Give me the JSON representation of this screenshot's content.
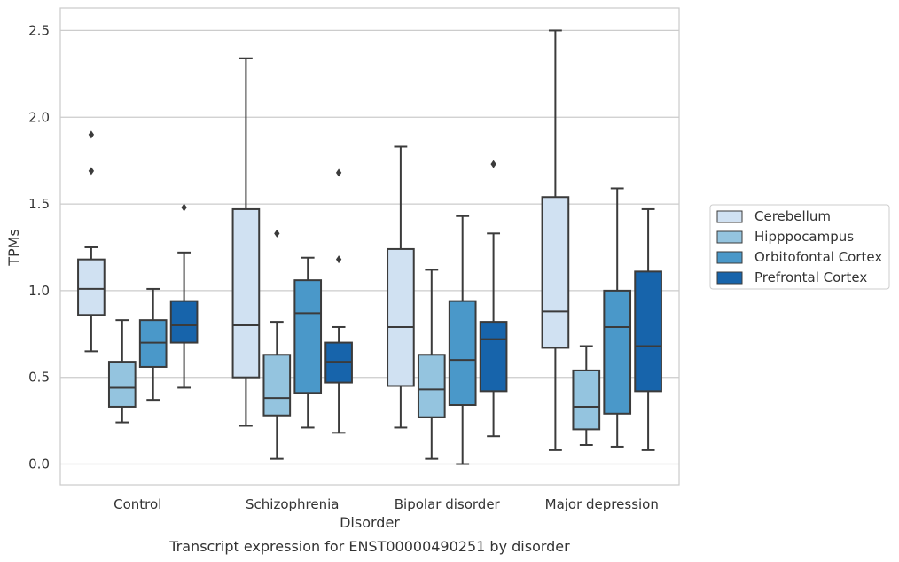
{
  "caption": "Transcript expression for ENST00000490251 by disorder",
  "chart_data": {
    "type": "box",
    "xlabel": "Disorder",
    "ylabel": "TPMs",
    "ylim": [
      -0.12,
      2.63
    ],
    "yticks": [
      "0.0",
      "0.5",
      "1.0",
      "1.5",
      "2.0",
      "2.5"
    ],
    "yticks_values": [
      0,
      0.5,
      1.0,
      1.5,
      2.0,
      2.5
    ],
    "grid": "horizontal",
    "legend_position": "right",
    "categories": [
      "Control",
      "Schizophrenia",
      "Bipolar disorder",
      "Major depression"
    ],
    "series": [
      {
        "name": "Cerebellum",
        "color": "#d0e1f2",
        "boxes": [
          {
            "whislo": 0.65,
            "q1": 0.86,
            "med": 1.01,
            "q3": 1.18,
            "whishi": 1.25,
            "fliers": [
              1.69,
              1.9
            ]
          },
          {
            "whislo": 0.22,
            "q1": 0.5,
            "med": 0.8,
            "q3": 1.47,
            "whishi": 2.34,
            "fliers": []
          },
          {
            "whislo": 0.21,
            "q1": 0.45,
            "med": 0.79,
            "q3": 1.24,
            "whishi": 1.83,
            "fliers": []
          },
          {
            "whislo": 0.08,
            "q1": 0.67,
            "med": 0.88,
            "q3": 1.54,
            "whishi": 2.5,
            "fliers": []
          }
        ]
      },
      {
        "name": "Hipppocampus",
        "color": "#94c4df",
        "boxes": [
          {
            "whislo": 0.24,
            "q1": 0.33,
            "med": 0.44,
            "q3": 0.59,
            "whishi": 0.83,
            "fliers": []
          },
          {
            "whislo": 0.03,
            "q1": 0.28,
            "med": 0.38,
            "q3": 0.63,
            "whishi": 0.82,
            "fliers": [
              1.33
            ]
          },
          {
            "whislo": 0.03,
            "q1": 0.27,
            "med": 0.43,
            "q3": 0.63,
            "whishi": 1.12,
            "fliers": []
          },
          {
            "whislo": 0.11,
            "q1": 0.2,
            "med": 0.33,
            "q3": 0.54,
            "whishi": 0.68,
            "fliers": []
          }
        ]
      },
      {
        "name": "Orbitofontal Cortex",
        "color": "#4a98c9",
        "boxes": [
          {
            "whislo": 0.37,
            "q1": 0.56,
            "med": 0.7,
            "q3": 0.83,
            "whishi": 1.01,
            "fliers": []
          },
          {
            "whislo": 0.21,
            "q1": 0.41,
            "med": 0.87,
            "q3": 1.06,
            "whishi": 1.19,
            "fliers": []
          },
          {
            "whislo": 0.0,
            "q1": 0.34,
            "med": 0.6,
            "q3": 0.94,
            "whishi": 1.43,
            "fliers": []
          },
          {
            "whislo": 0.1,
            "q1": 0.29,
            "med": 0.79,
            "q3": 1.0,
            "whishi": 1.59,
            "fliers": []
          }
        ]
      },
      {
        "name": "Prefrontal Cortex",
        "color": "#1764ab",
        "boxes": [
          {
            "whislo": 0.44,
            "q1": 0.7,
            "med": 0.8,
            "q3": 0.94,
            "whishi": 1.22,
            "fliers": [
              1.48
            ]
          },
          {
            "whislo": 0.18,
            "q1": 0.47,
            "med": 0.59,
            "q3": 0.7,
            "whishi": 0.79,
            "fliers": [
              1.18,
              1.68
            ]
          },
          {
            "whislo": 0.16,
            "q1": 0.42,
            "med": 0.72,
            "q3": 0.82,
            "whishi": 1.33,
            "fliers": [
              1.73
            ]
          },
          {
            "whislo": 0.08,
            "q1": 0.42,
            "med": 0.68,
            "q3": 1.11,
            "whishi": 1.47,
            "fliers": []
          }
        ]
      }
    ]
  }
}
